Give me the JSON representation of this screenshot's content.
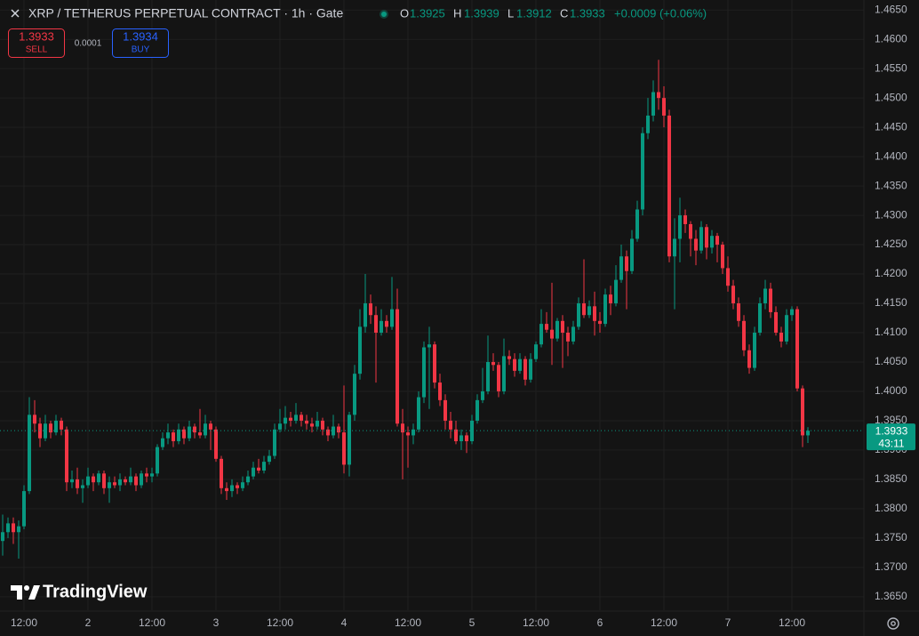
{
  "header": {
    "title": "XRP / TETHERUS PERPETUAL CONTRACT · 1h · Gate",
    "labels": [
      "O",
      "H",
      "L",
      "C"
    ],
    "change": "+0.0009 (+0.06%)"
  },
  "trade": {
    "sell_price": 1.3933,
    "sell_label": "SELL",
    "spread": 0.0001,
    "buy_price": 1.3934,
    "buy_label": "BUY"
  },
  "branding": "TradingView",
  "chart_data": {
    "type": "candlestick",
    "up_color": "#089981",
    "down_color": "#f23645",
    "grid": true,
    "countdown": "43:11",
    "xlim": [
      -0.5,
      161.5
    ],
    "ylim": [
      1.3627,
      1.4667
    ],
    "xticks": [
      {
        "value": 4,
        "label": "12:00"
      },
      {
        "value": 16,
        "label": "2"
      },
      {
        "value": 28,
        "label": "12:00"
      },
      {
        "value": 40,
        "label": "3"
      },
      {
        "value": 52,
        "label": "12:00"
      },
      {
        "value": 64,
        "label": "4"
      },
      {
        "value": 76,
        "label": "12:00"
      },
      {
        "value": 88,
        "label": "5"
      },
      {
        "value": 100,
        "label": "12:00"
      },
      {
        "value": 112,
        "label": "6"
      },
      {
        "value": 124,
        "label": "12:00"
      },
      {
        "value": 136,
        "label": "7"
      },
      {
        "value": 148,
        "label": "12:00"
      }
    ],
    "yticks": [
      {
        "value": 1.365,
        "label": "1.3650"
      },
      {
        "value": 1.37,
        "label": "1.3700"
      },
      {
        "value": 1.375,
        "label": "1.3750"
      },
      {
        "value": 1.38,
        "label": "1.3800"
      },
      {
        "value": 1.385,
        "label": "1.3850"
      },
      {
        "value": 1.39,
        "label": "1.3900"
      },
      {
        "value": 1.395,
        "label": "1.3950"
      },
      {
        "value": 1.4,
        "label": "1.4000"
      },
      {
        "value": 1.405,
        "label": "1.4050"
      },
      {
        "value": 1.41,
        "label": "1.4100"
      },
      {
        "value": 1.415,
        "label": "1.4150"
      },
      {
        "value": 1.42,
        "label": "1.4200"
      },
      {
        "value": 1.425,
        "label": "1.4250"
      },
      {
        "value": 1.43,
        "label": "1.4300"
      },
      {
        "value": 1.435,
        "label": "1.4350"
      },
      {
        "value": 1.44,
        "label": "1.4400"
      },
      {
        "value": 1.445,
        "label": "1.4450"
      },
      {
        "value": 1.45,
        "label": "1.4500"
      },
      {
        "value": 1.455,
        "label": "1.4550"
      },
      {
        "value": 1.46,
        "label": "1.4600"
      },
      {
        "value": 1.465,
        "label": "1.4650"
      }
    ],
    "candles": [
      [
        1.3745,
        1.379,
        1.372,
        1.376
      ],
      [
        1.376,
        1.3785,
        1.375,
        1.3775
      ],
      [
        1.3775,
        1.3785,
        1.374,
        1.376
      ],
      [
        1.376,
        1.378,
        1.3715,
        1.377
      ],
      [
        1.377,
        1.384,
        1.3765,
        1.383
      ],
      [
        1.383,
        1.399,
        1.3825,
        1.396
      ],
      [
        1.396,
        1.3985,
        1.393,
        1.3945
      ],
      [
        1.3945,
        1.3955,
        1.3905,
        1.392
      ],
      [
        1.392,
        1.396,
        1.3915,
        1.3945
      ],
      [
        1.3945,
        1.395,
        1.392,
        1.393
      ],
      [
        1.393,
        1.396,
        1.3925,
        1.395
      ],
      [
        1.395,
        1.3955,
        1.3925,
        1.3935
      ],
      [
        1.3935,
        1.394,
        1.383,
        1.3845
      ],
      [
        1.3845,
        1.3865,
        1.3835,
        1.385
      ],
      [
        1.385,
        1.387,
        1.3825,
        1.3835
      ],
      [
        1.3835,
        1.385,
        1.381,
        1.384
      ],
      [
        1.384,
        1.387,
        1.3835,
        1.3855
      ],
      [
        1.3855,
        1.386,
        1.383,
        1.3845
      ],
      [
        1.3845,
        1.3865,
        1.384,
        1.386
      ],
      [
        1.386,
        1.3865,
        1.3825,
        1.3835
      ],
      [
        1.3835,
        1.3855,
        1.381,
        1.3845
      ],
      [
        1.3845,
        1.3855,
        1.3835,
        1.384
      ],
      [
        1.384,
        1.386,
        1.383,
        1.385
      ],
      [
        1.385,
        1.3855,
        1.384,
        1.3845
      ],
      [
        1.3845,
        1.387,
        1.384,
        1.3855
      ],
      [
        1.3855,
        1.386,
        1.383,
        1.384
      ],
      [
        1.384,
        1.3865,
        1.3835,
        1.386
      ],
      [
        1.386,
        1.387,
        1.3845,
        1.3855
      ],
      [
        1.3855,
        1.387,
        1.3845,
        1.386
      ],
      [
        1.386,
        1.391,
        1.3855,
        1.3905
      ],
      [
        1.3905,
        1.393,
        1.39,
        1.392
      ],
      [
        1.392,
        1.3945,
        1.391,
        1.393
      ],
      [
        1.393,
        1.3935,
        1.3905,
        1.3915
      ],
      [
        1.3915,
        1.3945,
        1.391,
        1.3935
      ],
      [
        1.3935,
        1.394,
        1.391,
        1.392
      ],
      [
        1.392,
        1.395,
        1.3915,
        1.394
      ],
      [
        1.394,
        1.3945,
        1.392,
        1.393
      ],
      [
        1.393,
        1.397,
        1.392,
        1.3925
      ],
      [
        1.3925,
        1.396,
        1.392,
        1.3945
      ],
      [
        1.3945,
        1.395,
        1.39,
        1.3935
      ],
      [
        1.3935,
        1.394,
        1.388,
        1.3885
      ],
      [
        1.3885,
        1.389,
        1.3825,
        1.3835
      ],
      [
        1.3835,
        1.3845,
        1.3815,
        1.383
      ],
      [
        1.383,
        1.385,
        1.382,
        1.384
      ],
      [
        1.384,
        1.3845,
        1.3825,
        1.3835
      ],
      [
        1.3835,
        1.3855,
        1.383,
        1.3845
      ],
      [
        1.3845,
        1.3865,
        1.384,
        1.3855
      ],
      [
        1.3855,
        1.388,
        1.385,
        1.387
      ],
      [
        1.387,
        1.3885,
        1.386,
        1.3865
      ],
      [
        1.3865,
        1.389,
        1.386,
        1.388
      ],
      [
        1.388,
        1.39,
        1.3875,
        1.389
      ],
      [
        1.389,
        1.3945,
        1.3885,
        1.3935
      ],
      [
        1.3935,
        1.397,
        1.393,
        1.3945
      ],
      [
        1.3945,
        1.3975,
        1.3935,
        1.3955
      ],
      [
        1.3955,
        1.3965,
        1.394,
        1.395
      ],
      [
        1.395,
        1.398,
        1.3945,
        1.396
      ],
      [
        1.396,
        1.3965,
        1.394,
        1.395
      ],
      [
        1.395,
        1.396,
        1.3935,
        1.3945
      ],
      [
        1.3945,
        1.3955,
        1.393,
        1.394
      ],
      [
        1.394,
        1.3965,
        1.3935,
        1.395
      ],
      [
        1.395,
        1.3955,
        1.3925,
        1.3935
      ],
      [
        1.3935,
        1.394,
        1.3915,
        1.3925
      ],
      [
        1.3925,
        1.396,
        1.392,
        1.394
      ],
      [
        1.394,
        1.3945,
        1.392,
        1.393
      ],
      [
        1.393,
        1.401,
        1.386,
        1.3875
      ],
      [
        1.3875,
        1.3965,
        1.3855,
        1.396
      ],
      [
        1.396,
        1.4045,
        1.395,
        1.403
      ],
      [
        1.403,
        1.414,
        1.402,
        1.411
      ],
      [
        1.411,
        1.42,
        1.41,
        1.415
      ],
      [
        1.415,
        1.4165,
        1.4115,
        1.413
      ],
      [
        1.413,
        1.4145,
        1.4015,
        1.41
      ],
      [
        1.41,
        1.414,
        1.4095,
        1.412
      ],
      [
        1.412,
        1.413,
        1.41,
        1.411
      ],
      [
        1.411,
        1.4195,
        1.4105,
        1.414
      ],
      [
        1.414,
        1.4175,
        1.394,
        1.3945
      ],
      [
        1.3945,
        1.397,
        1.385,
        1.393
      ],
      [
        1.393,
        1.394,
        1.387,
        1.3925
      ],
      [
        1.3925,
        1.3945,
        1.391,
        1.3935
      ],
      [
        1.3935,
        1.4,
        1.393,
        1.399
      ],
      [
        1.399,
        1.4085,
        1.398,
        1.4075
      ],
      [
        1.4075,
        1.411,
        1.397,
        1.408
      ],
      [
        1.408,
        1.4085,
        1.4005,
        1.4015
      ],
      [
        1.4015,
        1.403,
        1.3975,
        1.3985
      ],
      [
        1.3985,
        1.3995,
        1.3935,
        1.395
      ],
      [
        1.395,
        1.3965,
        1.392,
        1.3935
      ],
      [
        1.3935,
        1.395,
        1.391,
        1.3915
      ],
      [
        1.3915,
        1.3935,
        1.39,
        1.3925
      ],
      [
        1.3925,
        1.393,
        1.3895,
        1.3915
      ],
      [
        1.3915,
        1.396,
        1.391,
        1.395
      ],
      [
        1.395,
        1.3995,
        1.3945,
        1.3985
      ],
      [
        1.3985,
        1.404,
        1.398,
        1.4
      ],
      [
        1.4,
        1.4095,
        1.3995,
        1.405
      ],
      [
        1.405,
        1.4065,
        1.4035,
        1.4045
      ],
      [
        1.4045,
        1.405,
        1.399,
        1.4
      ],
      [
        1.4,
        1.409,
        1.3995,
        1.406
      ],
      [
        1.406,
        1.407,
        1.4045,
        1.4055
      ],
      [
        1.4055,
        1.4065,
        1.4025,
        1.4035
      ],
      [
        1.4035,
        1.4065,
        1.403,
        1.4055
      ],
      [
        1.4055,
        1.406,
        1.401,
        1.402
      ],
      [
        1.402,
        1.4065,
        1.4015,
        1.4055
      ],
      [
        1.4055,
        1.4085,
        1.405,
        1.408
      ],
      [
        1.408,
        1.414,
        1.4075,
        1.4115
      ],
      [
        1.4115,
        1.4135,
        1.41,
        1.4105
      ],
      [
        1.4105,
        1.4185,
        1.4045,
        1.409
      ],
      [
        1.409,
        1.4125,
        1.4085,
        1.412
      ],
      [
        1.412,
        1.413,
        1.404,
        1.41
      ],
      [
        1.41,
        1.411,
        1.406,
        1.4085
      ],
      [
        1.4085,
        1.412,
        1.408,
        1.411
      ],
      [
        1.411,
        1.416,
        1.4105,
        1.415
      ],
      [
        1.415,
        1.4225,
        1.4125,
        1.413
      ],
      [
        1.413,
        1.4155,
        1.4125,
        1.4145
      ],
      [
        1.4145,
        1.417,
        1.4095,
        1.412
      ],
      [
        1.412,
        1.4135,
        1.41,
        1.4115
      ],
      [
        1.4115,
        1.4175,
        1.411,
        1.4165
      ],
      [
        1.4165,
        1.418,
        1.413,
        1.415
      ],
      [
        1.415,
        1.4215,
        1.4145,
        1.419
      ],
      [
        1.419,
        1.425,
        1.4185,
        1.423
      ],
      [
        1.423,
        1.424,
        1.414,
        1.4205
      ],
      [
        1.4205,
        1.4275,
        1.42,
        1.426
      ],
      [
        1.426,
        1.4325,
        1.4255,
        1.431
      ],
      [
        1.431,
        1.445,
        1.43,
        1.444
      ],
      [
        1.444,
        1.45,
        1.443,
        1.447
      ],
      [
        1.447,
        1.453,
        1.446,
        1.451
      ],
      [
        1.451,
        1.4565,
        1.448,
        1.45
      ],
      [
        1.45,
        1.452,
        1.445,
        1.447
      ],
      [
        1.447,
        1.448,
        1.422,
        1.423
      ],
      [
        1.423,
        1.4295,
        1.414,
        1.426
      ],
      [
        1.426,
        1.433,
        1.422,
        1.43
      ],
      [
        1.43,
        1.431,
        1.427,
        1.4285
      ],
      [
        1.4285,
        1.429,
        1.423,
        1.426
      ],
      [
        1.426,
        1.4275,
        1.4215,
        1.424
      ],
      [
        1.424,
        1.429,
        1.4235,
        1.428
      ],
      [
        1.428,
        1.4285,
        1.4225,
        1.4245
      ],
      [
        1.4245,
        1.4275,
        1.4235,
        1.4265
      ],
      [
        1.4265,
        1.427,
        1.422,
        1.425
      ],
      [
        1.425,
        1.4255,
        1.42,
        1.421
      ],
      [
        1.421,
        1.423,
        1.417,
        1.418
      ],
      [
        1.418,
        1.419,
        1.414,
        1.415
      ],
      [
        1.415,
        1.416,
        1.411,
        1.412
      ],
      [
        1.412,
        1.413,
        1.406,
        1.407
      ],
      [
        1.407,
        1.408,
        1.403,
        1.404
      ],
      [
        1.404,
        1.411,
        1.4035,
        1.41
      ],
      [
        1.41,
        1.416,
        1.4095,
        1.415
      ],
      [
        1.415,
        1.419,
        1.414,
        1.4175
      ],
      [
        1.4175,
        1.4185,
        1.4125,
        1.4135
      ],
      [
        1.4135,
        1.4145,
        1.4095,
        1.41
      ],
      [
        1.41,
        1.411,
        1.4075,
        1.4085
      ],
      [
        1.4085,
        1.414,
        1.408,
        1.413
      ],
      [
        1.413,
        1.4145,
        1.412,
        1.414
      ],
      [
        1.414,
        1.4145,
        1.4,
        1.4005
      ],
      [
        1.4005,
        1.401,
        1.3905,
        1.3925
      ],
      [
        1.3925,
        1.3939,
        1.3912,
        1.3933
      ]
    ]
  }
}
